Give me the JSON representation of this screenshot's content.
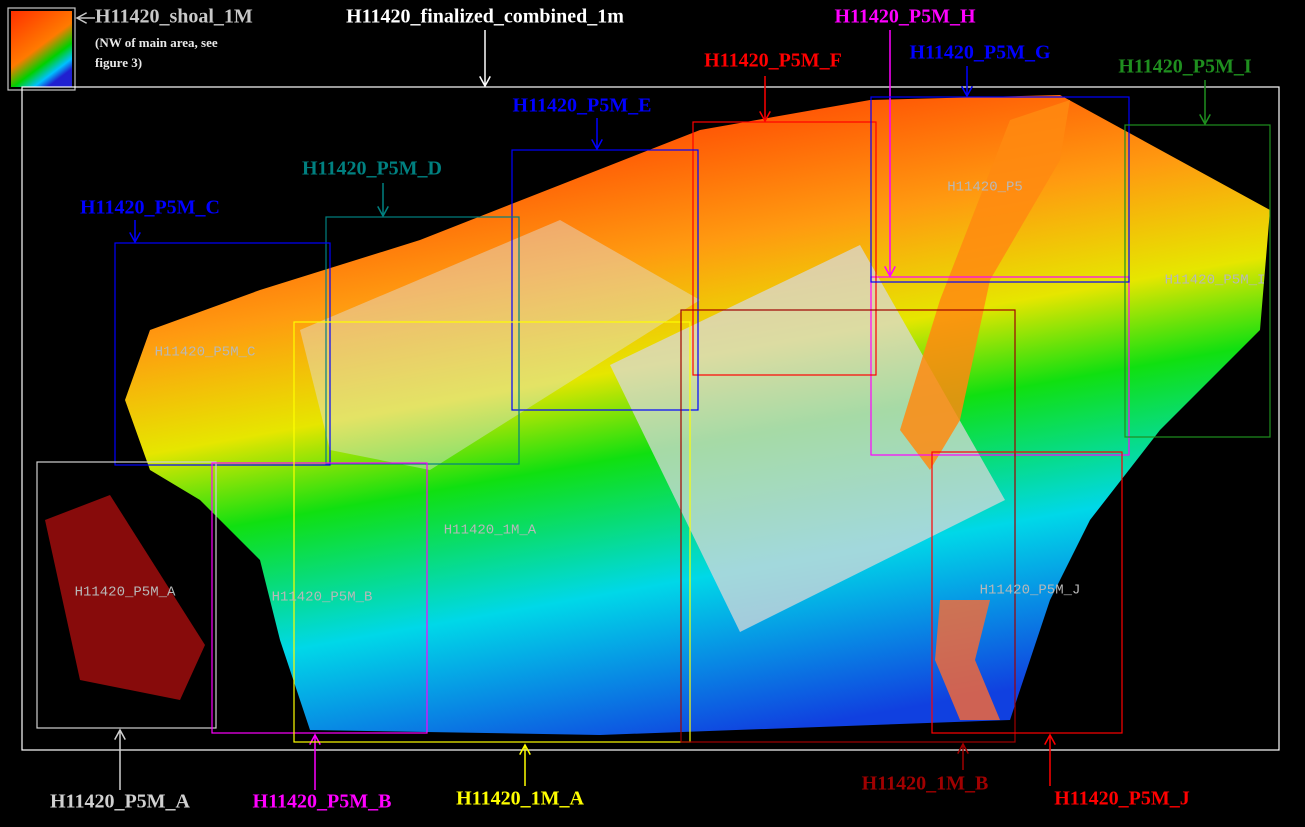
{
  "callouts": [
    {
      "label": "H11420_shoal_1M",
      "note": [
        "(NW of main area, see",
        "figure 3)"
      ],
      "color": "#c8c8c8"
    },
    {
      "label": "H11420_finalized_combined_1m",
      "color": "#ffffff"
    },
    {
      "label": "H11420_P5M_H",
      "color": "#ff00ff"
    },
    {
      "label": "H11420_P5M_F",
      "color": "#ff0000"
    },
    {
      "label": "H11420_P5M_G",
      "color": "#0000ff"
    },
    {
      "label": "H11420_P5M_I",
      "color": "#1f8f1f"
    },
    {
      "label": "H11420_P5M_E",
      "color": "#0000ff"
    },
    {
      "label": "H11420_P5M_D",
      "color": "#008080"
    },
    {
      "label": "H11420_P5M_C",
      "color": "#0000ff"
    },
    {
      "label": "H11420_P5M_A",
      "color": "#d0d0d0"
    },
    {
      "label": "H11420_P5M_B",
      "color": "#ff00ff"
    },
    {
      "label": "H11420_1M_A",
      "color": "#ffff00"
    },
    {
      "label": "H11420_1M_B",
      "color": "#a00000"
    },
    {
      "label": "H11420_P5M_J",
      "color": "#ff0000"
    }
  ],
  "inner_labels": [
    "H11420_P5M_A",
    "H11420_P5M_B",
    "H11420_1M_A",
    "H11420_P5M_J",
    "H11420_P5M_I",
    "H11420_P5M_C",
    "H11420_P5"
  ]
}
